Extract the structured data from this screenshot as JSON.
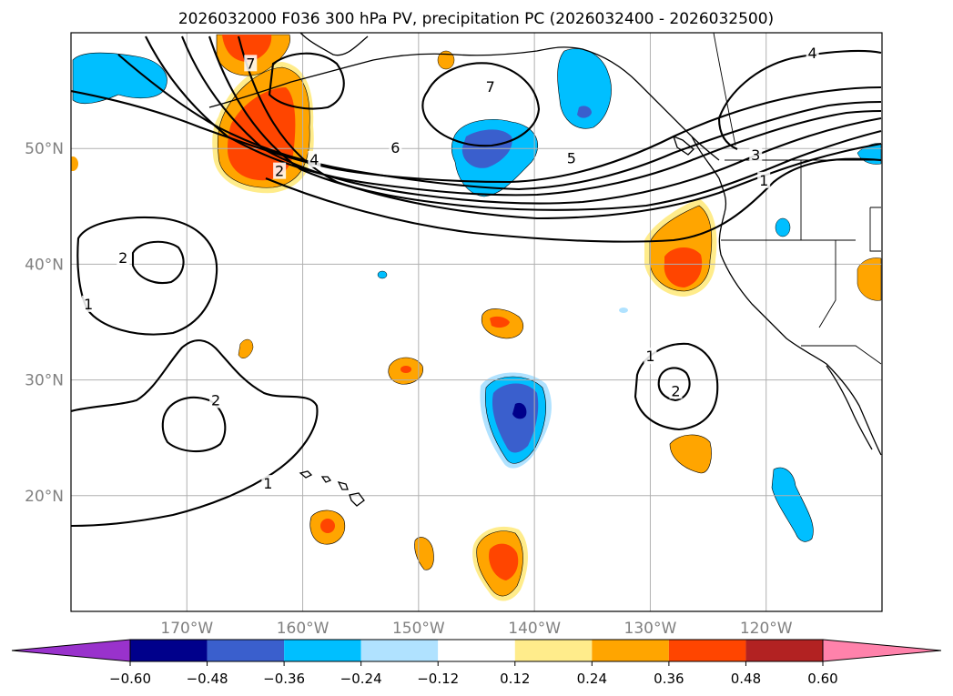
{
  "figure": {
    "title": "2026032000 F036 300 hPa PV, precipitation PC (2026032400 - 2026032500)"
  },
  "chart_data": {
    "type": "map",
    "projection": "PlateCarree",
    "extent": {
      "lon": [
        -180,
        -110
      ],
      "lat": [
        10,
        60
      ]
    },
    "grid": true,
    "lon_ticks": [
      {
        "value": -170,
        "label": "170°W"
      },
      {
        "value": -160,
        "label": "160°W"
      },
      {
        "value": -150,
        "label": "150°W"
      },
      {
        "value": -140,
        "label": "140°W"
      },
      {
        "value": -130,
        "label": "130°W"
      },
      {
        "value": -120,
        "label": "120°W"
      }
    ],
    "lat_ticks": [
      {
        "value": 20,
        "label": "20°N"
      },
      {
        "value": 30,
        "label": "30°N"
      },
      {
        "value": 40,
        "label": "40°N"
      },
      {
        "value": 50,
        "label": "50°N"
      }
    ],
    "colorbar": {
      "orientation": "horizontal",
      "extend": "both",
      "levels": [
        -0.6,
        -0.48,
        -0.36,
        -0.24,
        -0.12,
        0.12,
        0.24,
        0.36,
        0.48,
        0.6
      ],
      "tick_labels": [
        "−0.60",
        "−0.48",
        "−0.36",
        "−0.24",
        "−0.12",
        "0.12",
        "0.24",
        "0.36",
        "0.48",
        "0.60"
      ],
      "colors": [
        "#9932cc",
        "#00008b",
        "#3a5fcd",
        "#00bfff",
        "#b0e2ff",
        "#ffffff",
        "#ffec8b",
        "#ffa500",
        "#ff4500",
        "#b22222",
        "#ff82ab"
      ]
    },
    "pv_contour_labels": [
      {
        "text": "7",
        "lon": -164.5,
        "lat": 57.3
      },
      {
        "text": "2",
        "lon": -162.0,
        "lat": 48.0
      },
      {
        "text": "4",
        "lon": -159.0,
        "lat": 49.0
      },
      {
        "text": "6",
        "lon": -152.0,
        "lat": 50.0
      },
      {
        "text": "7",
        "lon": -143.8,
        "lat": 55.3
      },
      {
        "text": "5",
        "lon": -136.8,
        "lat": 49.1
      },
      {
        "text": "4",
        "lon": -116.0,
        "lat": 58.2
      },
      {
        "text": "3",
        "lon": -120.9,
        "lat": 49.4
      },
      {
        "text": "1",
        "lon": -120.2,
        "lat": 47.2
      },
      {
        "text": "2",
        "lon": -175.5,
        "lat": 40.5
      },
      {
        "text": "1",
        "lon": -178.5,
        "lat": 36.5
      },
      {
        "text": "2",
        "lon": -167.5,
        "lat": 28.2
      },
      {
        "text": "1",
        "lon": -163.0,
        "lat": 21.0
      },
      {
        "text": "1",
        "lon": -130.0,
        "lat": 32.0
      },
      {
        "text": "2",
        "lon": -127.8,
        "lat": 29.0
      }
    ]
  }
}
